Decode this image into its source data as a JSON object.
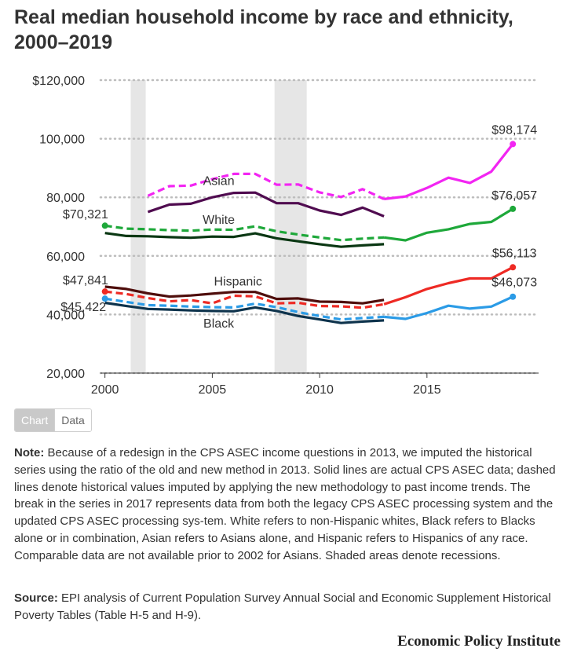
{
  "title": "Real median household income by race and ethnicity, 2000–2019",
  "toggle": {
    "chart_label": "Chart",
    "data_label": "Data"
  },
  "note": {
    "label": "Note:",
    "text": "Because of a redesign in the CPS ASEC income questions in 2013, we imputed the historical series using the ratio of the old and new method in 2013. Solid lines are actual CPS ASEC data; dashed lines denote historical values imputed by applying the new methodology to past income trends. The break in the series in 2017 represents data from both the legacy CPS ASEC processing system and the updated CPS ASEC processing sys-tem. White refers to non-Hispanic whites, Black refers to Blacks alone or in combination, Asian refers to Asians alone, and Hispanic refers to Hispanics of any race. Comparable data are not available prior to 2002 for Asians. Shaded areas denote recessions."
  },
  "source": {
    "label": "Source:",
    "text": "EPI analysis of Current Population Survey Annual Social and Economic Supplement Historical Poverty Tables (Table H-5 and H-9)."
  },
  "brand": "Economic Policy Institute",
  "chart_data": {
    "type": "line",
    "title": "Real median household income by race and ethnicity, 2000–2019",
    "xlabel": "",
    "ylabel": "",
    "xlim": [
      1999.5,
      2020.2
    ],
    "ylim": [
      20000,
      120000
    ],
    "x_ticks": [
      2000,
      2005,
      2010,
      2015
    ],
    "x_tick_labels": [
      "2000",
      "2005",
      "2010",
      "2015"
    ],
    "y_ticks": [
      20000,
      40000,
      60000,
      80000,
      100000,
      120000
    ],
    "y_tick_labels": [
      "20,000",
      "40,000",
      "60,000",
      "80,000",
      "100,000",
      "$120,000"
    ],
    "grid": true,
    "recessions": [
      [
        2001.2,
        2001.9
      ],
      [
        2007.9,
        2009.4
      ]
    ],
    "series": [
      {
        "name": "Asian",
        "color": "#f225f2",
        "solid_old": {
          "x": [
            2002,
            2003,
            2004,
            2005,
            2006,
            2007,
            2008,
            2009,
            2010,
            2011,
            2012,
            2013
          ],
          "y": [
            75000,
            77500,
            77800,
            80000,
            81500,
            81600,
            78000,
            78000,
            75500,
            74000,
            76500,
            73500
          ]
        },
        "dashed": {
          "x": [
            2002,
            2003,
            2004,
            2005,
            2006,
            2007,
            2008,
            2009,
            2010,
            2011,
            2012,
            2013
          ],
          "y": [
            80500,
            83800,
            84000,
            86200,
            88000,
            88000,
            84300,
            84400,
            81700,
            80100,
            82800,
            79400
          ]
        },
        "solid_new": {
          "x": [
            2013,
            2014,
            2015,
            2016,
            2017,
            2018,
            2019
          ],
          "y": [
            79400,
            80300,
            83200,
            86700,
            84900,
            88800,
            98174
          ]
        },
        "start_label": "",
        "end_label": "$98,174",
        "name_label": "Asian"
      },
      {
        "name": "White",
        "color": "#1ea83a",
        "solid_old": {
          "x": [
            2000,
            2001,
            2002,
            2003,
            2004,
            2005,
            2006,
            2007,
            2008,
            2009,
            2010,
            2011,
            2012,
            2013
          ],
          "y": [
            67800,
            66800,
            66700,
            66400,
            66200,
            66600,
            66500,
            67700,
            66000,
            65000,
            64000,
            63100,
            63600,
            64000
          ]
        },
        "dashed": {
          "x": [
            2000,
            2001,
            2002,
            2003,
            2004,
            2005,
            2006,
            2007,
            2008,
            2009,
            2010,
            2011,
            2012,
            2013
          ],
          "y": [
            70321,
            69300,
            69100,
            68800,
            68600,
            69000,
            68900,
            70100,
            68400,
            67300,
            66300,
            65400,
            65900,
            66300
          ]
        },
        "solid_new": {
          "x": [
            2013,
            2014,
            2015,
            2016,
            2017,
            2018,
            2019
          ],
          "y": [
            66300,
            65300,
            67900,
            69100,
            70900,
            71600,
            76057
          ]
        },
        "start_label": "$70,321",
        "end_label": "$76,057",
        "name_label": "White"
      },
      {
        "name": "Hispanic",
        "color": "#ee2a24",
        "solid_old": {
          "x": [
            2000,
            2001,
            2002,
            2003,
            2004,
            2005,
            2006,
            2007,
            2008,
            2009,
            2010,
            2011,
            2012,
            2013
          ],
          "y": [
            49500,
            48700,
            47200,
            46100,
            46500,
            47100,
            47700,
            47700,
            45300,
            45500,
            44400,
            44300,
            43800,
            45000
          ]
        },
        "dashed": {
          "x": [
            2000,
            2001,
            2002,
            2003,
            2004,
            2005,
            2006,
            2007,
            2008,
            2009,
            2010,
            2011,
            2012,
            2013
          ],
          "y": [
            47841,
            47000,
            45600,
            44500,
            44900,
            43800,
            46400,
            46200,
            43800,
            44000,
            42900,
            42800,
            42300,
            43500
          ]
        },
        "solid_new": {
          "x": [
            2013,
            2014,
            2015,
            2016,
            2017,
            2018,
            2019
          ],
          "y": [
            43500,
            45900,
            48700,
            50700,
            52300,
            52300,
            56113
          ]
        },
        "start_label": "$47,841",
        "end_label": "$56,113",
        "name_label": "Hispanic"
      },
      {
        "name": "Black",
        "color": "#2b9be6",
        "solid_old": {
          "x": [
            2000,
            2001,
            2002,
            2003,
            2004,
            2005,
            2006,
            2007,
            2008,
            2009,
            2010,
            2011,
            2012,
            2013
          ],
          "y": [
            44000,
            42900,
            41900,
            41700,
            41400,
            41200,
            41100,
            42400,
            41200,
            39500,
            38300,
            37100,
            37600,
            38000
          ]
        },
        "dashed": {
          "x": [
            2000,
            2001,
            2002,
            2003,
            2004,
            2005,
            2006,
            2007,
            2008,
            2009,
            2010,
            2011,
            2012,
            2013
          ],
          "y": [
            45422,
            44300,
            43200,
            43000,
            42700,
            42500,
            42400,
            43700,
            42500,
            40800,
            39500,
            38300,
            38800,
            39200
          ]
        },
        "solid_new": {
          "x": [
            2013,
            2014,
            2015,
            2016,
            2017,
            2018,
            2019
          ],
          "y": [
            39200,
            38500,
            40500,
            43000,
            42000,
            42700,
            46073
          ]
        },
        "start_label": "$45,422",
        "end_label": "$46,073",
        "name_label": "Black"
      }
    ]
  }
}
